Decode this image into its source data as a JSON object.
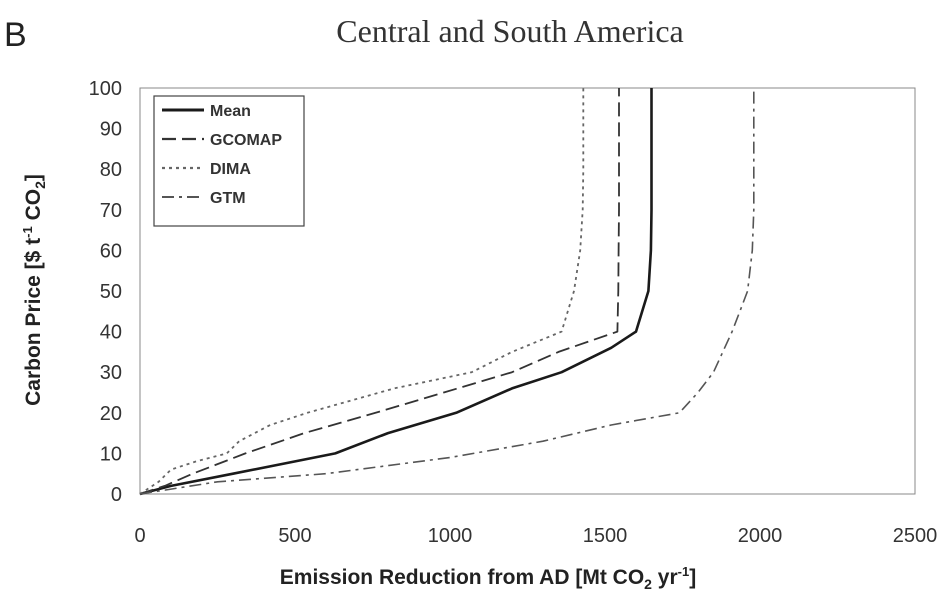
{
  "panel_letter": "B",
  "chart_data": {
    "type": "line",
    "title": "Central and South America",
    "xlabel": {
      "main": "Emission Reduction from AD [Mt CO",
      "sub": "2",
      "unit": " yr",
      "sup": "-1",
      "end": "]"
    },
    "ylabel": {
      "main": "Carbon Price [$ t",
      "sup": "-1",
      "mid": " CO",
      "sub": "2",
      "end": "]"
    },
    "xlim": [
      0,
      2500
    ],
    "ylim": [
      0,
      100
    ],
    "xticks": [
      0,
      500,
      1000,
      1500,
      2000,
      2500
    ],
    "yticks": [
      0,
      10,
      20,
      30,
      40,
      50,
      60,
      70,
      80,
      90,
      100
    ],
    "grid": false,
    "legend_position": "top-left",
    "series": [
      {
        "name": "Mean",
        "color": "#1a1a1a",
        "dash": "solid",
        "points": [
          [
            0,
            0
          ],
          [
            100,
            2
          ],
          [
            300,
            5
          ],
          [
            630,
            10
          ],
          [
            800,
            15
          ],
          [
            1020,
            20
          ],
          [
            1200,
            26
          ],
          [
            1360,
            30
          ],
          [
            1520,
            36
          ],
          [
            1600,
            40
          ],
          [
            1640,
            50
          ],
          [
            1648,
            60
          ],
          [
            1650,
            70
          ],
          [
            1650,
            80
          ],
          [
            1650,
            90
          ],
          [
            1650,
            100
          ]
        ]
      },
      {
        "name": "GCOMAP",
        "color": "#333333",
        "dash": "dashed",
        "points": [
          [
            0,
            0
          ],
          [
            80,
            2
          ],
          [
            170,
            5
          ],
          [
            340,
            10
          ],
          [
            530,
            15
          ],
          [
            760,
            20
          ],
          [
            980,
            25
          ],
          [
            1200,
            30
          ],
          [
            1350,
            35
          ],
          [
            1540,
            40
          ],
          [
            1543,
            50
          ],
          [
            1544,
            60
          ],
          [
            1545,
            70
          ],
          [
            1545,
            80
          ],
          [
            1545,
            90
          ],
          [
            1545,
            100
          ]
        ]
      },
      {
        "name": "DIMA",
        "color": "#666666",
        "dash": "dotted",
        "points": [
          [
            0,
            0
          ],
          [
            60,
            3
          ],
          [
            100,
            6
          ],
          [
            180,
            8
          ],
          [
            280,
            10
          ],
          [
            320,
            13
          ],
          [
            420,
            17
          ],
          [
            540,
            20
          ],
          [
            680,
            23
          ],
          [
            820,
            26
          ],
          [
            1070,
            30
          ],
          [
            1200,
            35
          ],
          [
            1360,
            40
          ],
          [
            1400,
            50
          ],
          [
            1420,
            60
          ],
          [
            1428,
            70
          ],
          [
            1430,
            80
          ],
          [
            1430,
            90
          ],
          [
            1430,
            100
          ]
        ]
      },
      {
        "name": "GTM",
        "color": "#555555",
        "dash": "dashdot",
        "points": [
          [
            0,
            0
          ],
          [
            250,
            3
          ],
          [
            600,
            5
          ],
          [
            1000,
            9
          ],
          [
            1300,
            13
          ],
          [
            1520,
            17
          ],
          [
            1740,
            20
          ],
          [
            1800,
            25
          ],
          [
            1850,
            30
          ],
          [
            1880,
            35
          ],
          [
            1910,
            40
          ],
          [
            1935,
            45
          ],
          [
            1960,
            50
          ],
          [
            1975,
            60
          ],
          [
            1980,
            70
          ],
          [
            1980,
            80
          ],
          [
            1980,
            90
          ],
          [
            1980,
            100
          ]
        ]
      }
    ]
  }
}
